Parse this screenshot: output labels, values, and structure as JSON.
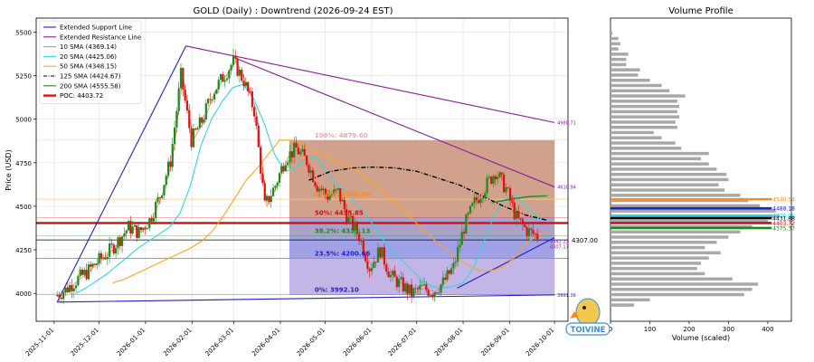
{
  "chart_data": [
    {
      "type": "candlestick",
      "title": "GOLD (Daily) : Downtrend (2026-09-24 EST)",
      "xlabel": "",
      "ylabel": "Price (USD)",
      "x_ticks": [
        "2025-11-01",
        "2025-12-01",
        "2026-01-01",
        "2026-02-01",
        "2026-03-01",
        "2026-04-01",
        "2026-05-01",
        "2026-06-01",
        "2026-07-01",
        "2026-08-01",
        "2026-09-01",
        "2026-10-01"
      ],
      "y_ticks": [
        4000,
        4250,
        4500,
        4750,
        5000,
        5250,
        5500
      ],
      "ylim": [
        3840,
        5580
      ],
      "xlim": [
        "2025-10-20",
        "2026-10-10"
      ],
      "grid": true,
      "legend_position": "top-left",
      "legend": [
        {
          "label": "Extended Support Line",
          "color": "#1f1fd0",
          "style": "solid"
        },
        {
          "label": "Extended Resistance Line",
          "color": "#8b1a9b",
          "style": "solid"
        },
        {
          "label": "10 SMA (4369.14)",
          "color": "#ff7f50",
          "style": "solid"
        },
        {
          "label": "20 SMA (4425.06)",
          "color": "#2fd6e8",
          "style": "solid"
        },
        {
          "label": "50 SMA (4348.15)",
          "color": "#ffa51f",
          "style": "solid"
        },
        {
          "label": "125 SMA (4424.67)",
          "color": "#000000",
          "style": "dashdot"
        },
        {
          "label": "200 SMA (4555.58)",
          "color": "#1a8a1a",
          "style": "solid"
        },
        {
          "label": "POC: 4403.72",
          "color": "#dd1111",
          "style": "thick"
        }
      ],
      "close_series": [
        {
          "date": "2025-11-03",
          "close": 3985
        },
        {
          "date": "2025-11-10",
          "close": 4020
        },
        {
          "date": "2025-11-17",
          "close": 4075
        },
        {
          "date": "2025-11-24",
          "close": 4120
        },
        {
          "date": "2025-12-01",
          "close": 4180
        },
        {
          "date": "2025-12-08",
          "close": 4230
        },
        {
          "date": "2025-12-15",
          "close": 4300
        },
        {
          "date": "2025-12-22",
          "close": 4380
        },
        {
          "date": "2025-12-29",
          "close": 4350
        },
        {
          "date": "2026-01-05",
          "close": 4420
        },
        {
          "date": "2026-01-12",
          "close": 4560
        },
        {
          "date": "2026-01-19",
          "close": 4760
        },
        {
          "date": "2026-01-26",
          "close": 5250
        },
        {
          "date": "2026-02-02",
          "close": 4880
        },
        {
          "date": "2026-02-09",
          "close": 4990
        },
        {
          "date": "2026-02-16",
          "close": 5150
        },
        {
          "date": "2026-02-23",
          "close": 5240
        },
        {
          "date": "2026-03-02",
          "close": 5330
        },
        {
          "date": "2026-03-09",
          "close": 5220
        },
        {
          "date": "2026-03-16",
          "close": 5050
        },
        {
          "date": "2026-03-23",
          "close": 4500
        },
        {
          "date": "2026-03-30",
          "close": 4620
        },
        {
          "date": "2026-04-06",
          "close": 4780
        },
        {
          "date": "2026-04-13",
          "close": 4830
        },
        {
          "date": "2026-04-20",
          "close": 4760
        },
        {
          "date": "2026-04-27",
          "close": 4620
        },
        {
          "date": "2026-05-04",
          "close": 4560
        },
        {
          "date": "2026-05-11",
          "close": 4580
        },
        {
          "date": "2026-05-18",
          "close": 4420
        },
        {
          "date": "2026-05-25",
          "close": 4330
        },
        {
          "date": "2026-06-01",
          "close": 4150
        },
        {
          "date": "2026-06-08",
          "close": 4250
        },
        {
          "date": "2026-06-15",
          "close": 4100
        },
        {
          "date": "2026-06-22",
          "close": 4050
        },
        {
          "date": "2026-06-29",
          "close": 4000
        },
        {
          "date": "2026-07-06",
          "close": 4030
        },
        {
          "date": "2026-07-13",
          "close": 4010
        },
        {
          "date": "2026-07-20",
          "close": 4060
        },
        {
          "date": "2026-07-27",
          "close": 4150
        },
        {
          "date": "2026-08-03",
          "close": 4380
        },
        {
          "date": "2026-08-10",
          "close": 4520
        },
        {
          "date": "2026-08-17",
          "close": 4610
        },
        {
          "date": "2026-08-24",
          "close": 4700
        },
        {
          "date": "2026-08-31",
          "close": 4600
        },
        {
          "date": "2026-09-07",
          "close": 4430
        },
        {
          "date": "2026-09-14",
          "close": 4360
        },
        {
          "date": "2026-09-21",
          "close": 4330
        }
      ],
      "sma_values": {
        "sma20": [
          4000,
          4030,
          4070,
          4110,
          4160,
          4210,
          4260,
          4300,
          4340,
          4380,
          4460,
          4620,
          4850,
          5000,
          5100,
          5180,
          5200,
          5120,
          4980,
          4800,
          4700,
          4720,
          4770,
          4780,
          4700,
          4620,
          4580,
          4500,
          4430,
          4340,
          4260,
          4200,
          4140,
          4080,
          4040,
          4030,
          4040,
          4060,
          4150,
          4300,
          4450,
          4540,
          4560,
          4500,
          4440,
          4420
        ],
        "sma50": [
          4060,
          4080,
          4110,
          4140,
          4170,
          4200,
          4230,
          4260,
          4300,
          4360,
          4450,
          4550,
          4650,
          4720,
          4800,
          4880,
          4880,
          4860,
          4820,
          4790,
          4760,
          4740,
          4700,
          4650,
          4600,
          4540,
          4480,
          4420,
          4360,
          4300,
          4250,
          4200,
          4160,
          4130,
          4130,
          4150,
          4200,
          4280,
          4330,
          4350
        ],
        "sma125": [
          4650,
          4700,
          4720,
          4725,
          4720,
          4700,
          4660,
          4620,
          4560,
          4500,
          4450,
          4420
        ]
      },
      "support_line": {
        "start": {
          "date": "2025-11-03",
          "price": 3950
        },
        "end": {
          "date": "2026-10-01",
          "price": 3991.36
        },
        "label": "3991.36"
      },
      "support_line_2": {
        "start": {
          "date": "2025-11-03",
          "price": 3950
        },
        "end": {
          "date": "2026-01-28",
          "price": 5420
        }
      },
      "support_line_3": {
        "start": {
          "date": "2026-07-28",
          "price": 4030
        },
        "end": {
          "date": "2026-10-01",
          "price": 4320
        }
      },
      "resistance_line": {
        "start": {
          "date": "2026-01-28",
          "price": 5420
        },
        "end": {
          "date": "2026-10-01",
          "price": 4980.71
        },
        "label": "4980.71"
      },
      "resistance_line_2": {
        "start": {
          "date": "2026-03-02",
          "price": 5350
        },
        "end": {
          "date": "2026-10-01",
          "price": 4610.94
        },
        "label": "4610.94"
      },
      "fib_retracement": {
        "start_date": "2026-04-07",
        "end_date": "2026-10-01",
        "levels": [
          {
            "label": "100%: 4879.60",
            "price": 4879.6,
            "band_color": "#c89078",
            "text_color": "#f4a6a6"
          },
          {
            "label": "61.8%: 4540.60",
            "price": 4540.6,
            "band_color": "#c89078",
            "text_color": "#ff8c1a"
          },
          {
            "label": "50%: 4435.85",
            "price": 4435.85,
            "band_color": "#9f8fc0",
            "text_color": "#cc1111"
          },
          {
            "label": "38.2%: 4331.13",
            "price": 4331.13,
            "band_color": "#9090e0",
            "text_color": "#1a8a1a"
          },
          {
            "label": "23.5%: 4200.66",
            "price": 4200.66,
            "band_color": "#b8a8e0",
            "text_color": "#1f1fd0"
          },
          {
            "label": "0%: 3992.10",
            "price": 3992.1,
            "band_color": "#d8c8ec",
            "text_color": "#1f1fd0"
          }
        ]
      },
      "horizontal_levels": [
        {
          "price": 4403.72,
          "color": "#cc1111",
          "style": "thick"
        },
        {
          "price": 4307.0,
          "color": "#000000",
          "style": "thin",
          "label": "4307.00"
        },
        {
          "price": 4540.6,
          "color": "#ffcc88",
          "style": "thin"
        },
        {
          "price": 4200.66,
          "color": "#8888ee",
          "style": "thin"
        }
      ],
      "right_edge_labels": [
        "4341.23",
        "4307.17"
      ]
    },
    {
      "type": "bar",
      "orientation": "horizontal",
      "title": "Volume Profile",
      "xlabel": "Volume (scaled)",
      "ylabel": "",
      "x_ticks": [
        0,
        100,
        200,
        300,
        400
      ],
      "xlim": [
        0,
        460
      ],
      "ylim": [
        3840,
        5580
      ],
      "grid": false,
      "bins": [
        {
          "price": 5490,
          "volume": 5
        },
        {
          "price": 5460,
          "volume": 20
        },
        {
          "price": 5430,
          "volume": 25
        },
        {
          "price": 5400,
          "volume": 20
        },
        {
          "price": 5370,
          "volume": 45
        },
        {
          "price": 5340,
          "volume": 40
        },
        {
          "price": 5310,
          "volume": 40
        },
        {
          "price": 5280,
          "volume": 75
        },
        {
          "price": 5250,
          "volume": 70
        },
        {
          "price": 5220,
          "volume": 100
        },
        {
          "price": 5190,
          "volume": 130
        },
        {
          "price": 5160,
          "volume": 150
        },
        {
          "price": 5130,
          "volume": 190
        },
        {
          "price": 5100,
          "volume": 170
        },
        {
          "price": 5070,
          "volume": 175
        },
        {
          "price": 5040,
          "volume": 170
        },
        {
          "price": 5010,
          "volume": 175
        },
        {
          "price": 4980,
          "volume": 165
        },
        {
          "price": 4950,
          "volume": 170
        },
        {
          "price": 4920,
          "volume": 110
        },
        {
          "price": 4890,
          "volume": 130
        },
        {
          "price": 4860,
          "volume": 165
        },
        {
          "price": 4830,
          "volume": 180
        },
        {
          "price": 4800,
          "volume": 250
        },
        {
          "price": 4770,
          "volume": 230
        },
        {
          "price": 4740,
          "volume": 250
        },
        {
          "price": 4710,
          "volume": 270
        },
        {
          "price": 4680,
          "volume": 295
        },
        {
          "price": 4650,
          "volume": 300
        },
        {
          "price": 4620,
          "volume": 275
        },
        {
          "price": 4590,
          "volume": 290
        },
        {
          "price": 4560,
          "volume": 330
        },
        {
          "price": 4530,
          "volume": 350
        },
        {
          "price": 4500,
          "volume": 380
        },
        {
          "price": 4470,
          "volume": 420
        },
        {
          "price": 4440,
          "volume": 430
        },
        {
          "price": 4410,
          "volume": 400
        },
        {
          "price": 4380,
          "volume": 360
        },
        {
          "price": 4350,
          "volume": 330
        },
        {
          "price": 4320,
          "volume": 300
        },
        {
          "price": 4290,
          "volume": 270
        },
        {
          "price": 4260,
          "volume": 240
        },
        {
          "price": 4230,
          "volume": 280
        },
        {
          "price": 4200,
          "volume": 250
        },
        {
          "price": 4170,
          "volume": 230
        },
        {
          "price": 4140,
          "volume": 220
        },
        {
          "price": 4110,
          "volume": 240
        },
        {
          "price": 4080,
          "volume": 310
        },
        {
          "price": 4050,
          "volume": 375
        },
        {
          "price": 4020,
          "volume": 360
        },
        {
          "price": 3990,
          "volume": 340
        },
        {
          "price": 3960,
          "volume": 100
        },
        {
          "price": 3930,
          "volume": 60
        }
      ],
      "profile_markers": [
        {
          "label": "4540.54",
          "price": 4540.54,
          "color": "#ff8c1a"
        },
        {
          "label": "4488.18",
          "price": 4488.18,
          "color": "#1f1fd0"
        },
        {
          "label": "4446.96",
          "price": 4446.96,
          "color": "#2fd6e8"
        },
        {
          "label": "4431.88",
          "price": 4431.88,
          "color": "#000000"
        },
        {
          "label": "4403.72",
          "price": 4403.72,
          "color": "#cc1111"
        },
        {
          "label": "4375.37",
          "price": 4375.37,
          "color": "#1a8a1a"
        }
      ]
    }
  ],
  "watermark": {
    "text": "TOIVINE",
    "color": "#3a8fd8"
  }
}
